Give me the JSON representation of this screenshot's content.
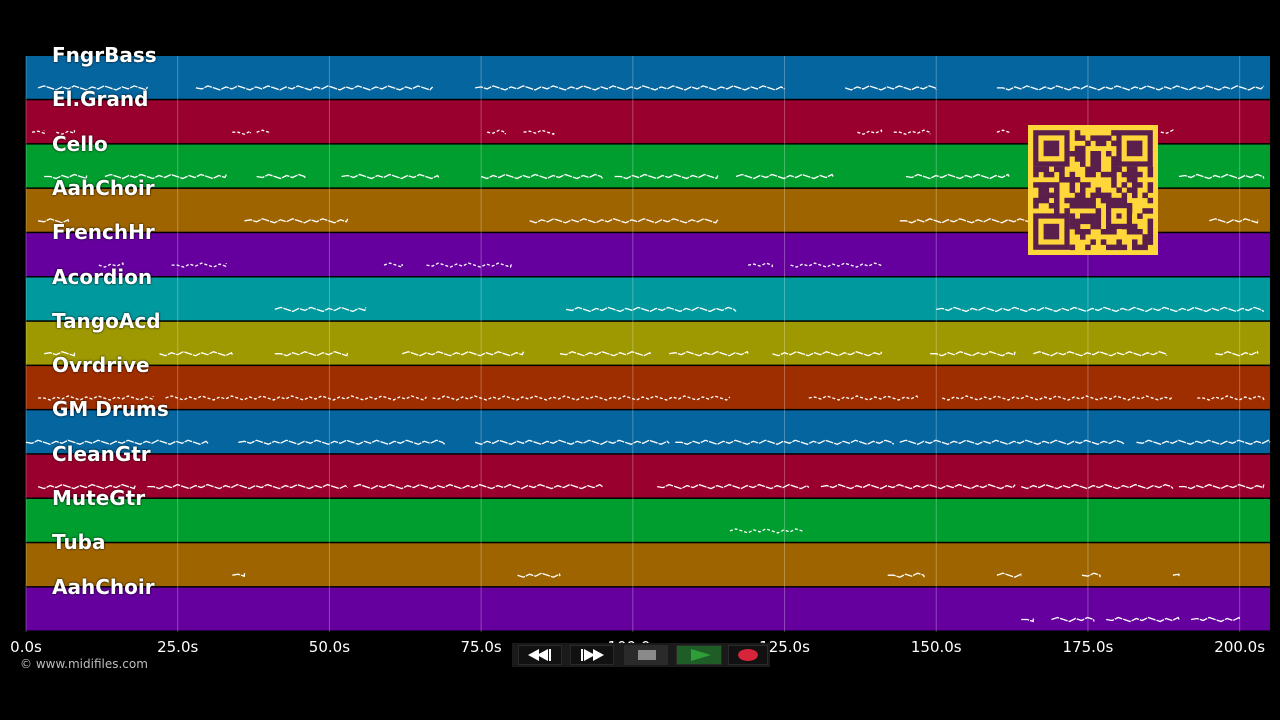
{
  "app": {
    "copyright": "© www.midifiles.com"
  },
  "tracks": [
    {
      "name": "FngrBass",
      "color": "#05659e"
    },
    {
      "name": "El.Grand",
      "color": "#99002e"
    },
    {
      "name": "Cello",
      "color": "#009e2e"
    },
    {
      "name": "AahChoir",
      "color": "#9e6400"
    },
    {
      "name": "FrenchHr",
      "color": "#65009e"
    },
    {
      "name": "Acordion",
      "color": "#00999e"
    },
    {
      "name": "TangoAcd",
      "color": "#9e9900"
    },
    {
      "name": "Ovrdrive",
      "color": "#9e2e00"
    },
    {
      "name": "GM Drums",
      "color": "#05659e"
    },
    {
      "name": "CleanGtr",
      "color": "#99002e"
    },
    {
      "name": "MuteGtr",
      "color": "#009e2e"
    },
    {
      "name": "Tuba",
      "color": "#9e6400"
    },
    {
      "name": "AahChoir",
      "color": "#65009e"
    }
  ],
  "timeline": {
    "max_seconds": 205,
    "ticks": [
      {
        "value": 0,
        "label": "0.0s"
      },
      {
        "value": 25,
        "label": "25.0s"
      },
      {
        "value": 50,
        "label": "50.0s"
      },
      {
        "value": 75,
        "label": "75.0s"
      },
      {
        "value": 100,
        "label": "100.0s"
      },
      {
        "value": 125,
        "label": "125.0s"
      },
      {
        "value": 150,
        "label": "150.0s"
      },
      {
        "value": 175,
        "label": "175.0s"
      },
      {
        "value": 200,
        "label": "200.0s"
      }
    ]
  },
  "transport": {
    "rewind": "rewind-icon",
    "fast_forward": "fast-forward-icon",
    "stop": "stop-icon",
    "play": "play-icon",
    "record": "record-icon",
    "colors": {
      "play": "#2e9e3a",
      "record": "#d6243a",
      "stop": "#8a8a8a"
    }
  },
  "qr": {
    "foreground": "#5a1f4a",
    "background": "#ffd73a"
  },
  "note_segments": [
    [
      [
        2,
        20
      ],
      [
        28,
        67
      ],
      [
        74,
        125
      ],
      [
        135,
        150
      ],
      [
        160,
        204
      ]
    ],
    [
      [
        1,
        3
      ],
      [
        5,
        8
      ],
      [
        34,
        37
      ],
      [
        38,
        40
      ],
      [
        76,
        79
      ],
      [
        82,
        87
      ],
      [
        137,
        141
      ],
      [
        143,
        149
      ],
      [
        160,
        162
      ],
      [
        187,
        189
      ]
    ],
    [
      [
        3,
        10
      ],
      [
        13,
        33
      ],
      [
        38,
        46
      ],
      [
        52,
        68
      ],
      [
        75,
        95
      ],
      [
        97,
        114
      ],
      [
        117,
        133
      ],
      [
        145,
        162
      ],
      [
        190,
        204
      ]
    ],
    [
      [
        2,
        7
      ],
      [
        36,
        53
      ],
      [
        83,
        114
      ],
      [
        144,
        166
      ],
      [
        195,
        203
      ]
    ],
    [
      [
        12,
        16
      ],
      [
        24,
        33
      ],
      [
        59,
        62
      ],
      [
        66,
        80
      ],
      [
        119,
        123
      ],
      [
        126,
        141
      ]
    ],
    [
      [
        41,
        56
      ],
      [
        89,
        117
      ],
      [
        150,
        204
      ]
    ],
    [
      [
        3,
        8
      ],
      [
        22,
        34
      ],
      [
        41,
        53
      ],
      [
        62,
        82
      ],
      [
        88,
        103
      ],
      [
        106,
        119
      ],
      [
        123,
        141
      ],
      [
        149,
        163
      ],
      [
        166,
        188
      ],
      [
        196,
        203
      ]
    ],
    [
      [
        2,
        21
      ],
      [
        23,
        66
      ],
      [
        67,
        116
      ],
      [
        129,
        147
      ],
      [
        151,
        189
      ],
      [
        193,
        204
      ]
    ],
    [
      [
        0,
        30
      ],
      [
        35,
        69
      ],
      [
        74,
        106
      ],
      [
        107,
        143
      ],
      [
        144,
        181
      ],
      [
        183,
        205
      ]
    ],
    [
      [
        2,
        18
      ],
      [
        20,
        53
      ],
      [
        54,
        95
      ],
      [
        104,
        129
      ],
      [
        131,
        163
      ],
      [
        164,
        189
      ],
      [
        190,
        204
      ]
    ],
    [
      [
        116,
        128
      ]
    ],
    [
      [
        34,
        36
      ],
      [
        81,
        88
      ],
      [
        142,
        148
      ],
      [
        160,
        164
      ],
      [
        174,
        177
      ],
      [
        189,
        190
      ]
    ],
    [
      [
        164,
        166
      ],
      [
        169,
        176
      ],
      [
        178,
        190
      ],
      [
        192,
        200
      ]
    ]
  ]
}
